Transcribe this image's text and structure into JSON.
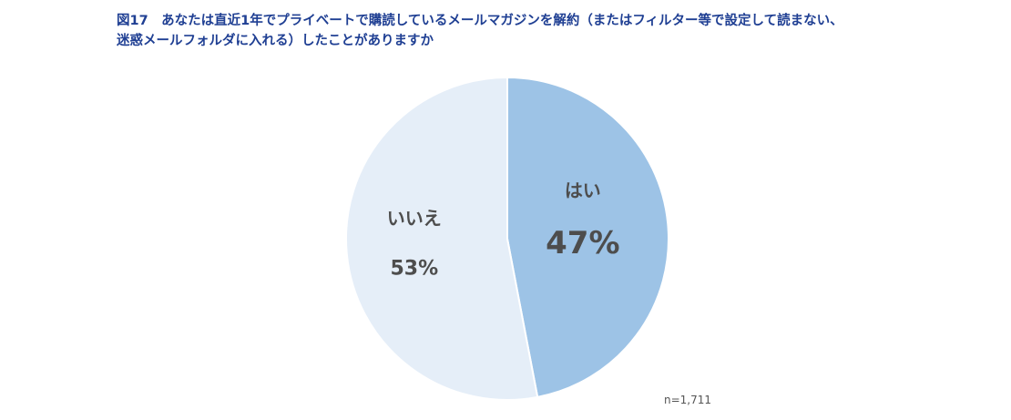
{
  "title": {
    "line1": "図17　あなたは直近1年でプライベートで購読しているメールマガジンを解約（またはフィルター等で設定して読まない、",
    "line2": "迷惑メールフォルダに入れる）したことがありますか"
  },
  "chart_data": {
    "type": "pie",
    "title": "図17　あなたは直近1年でプライベートで購読しているメールマガジンを解約（またはフィルター等で設定して読まない、迷惑メールフォルダに入れる）したことがありますか",
    "start": "12 o'clock",
    "direction": "clockwise",
    "slices": [
      {
        "label": "はい",
        "value": 47,
        "value_label": "47%",
        "color": "#9dc3e6"
      },
      {
        "label": "いいえ",
        "value": 53,
        "value_label": "53%",
        "color": "#e5eef8"
      }
    ],
    "slice_border_color": "#ffffff"
  },
  "note": "n=1,711"
}
